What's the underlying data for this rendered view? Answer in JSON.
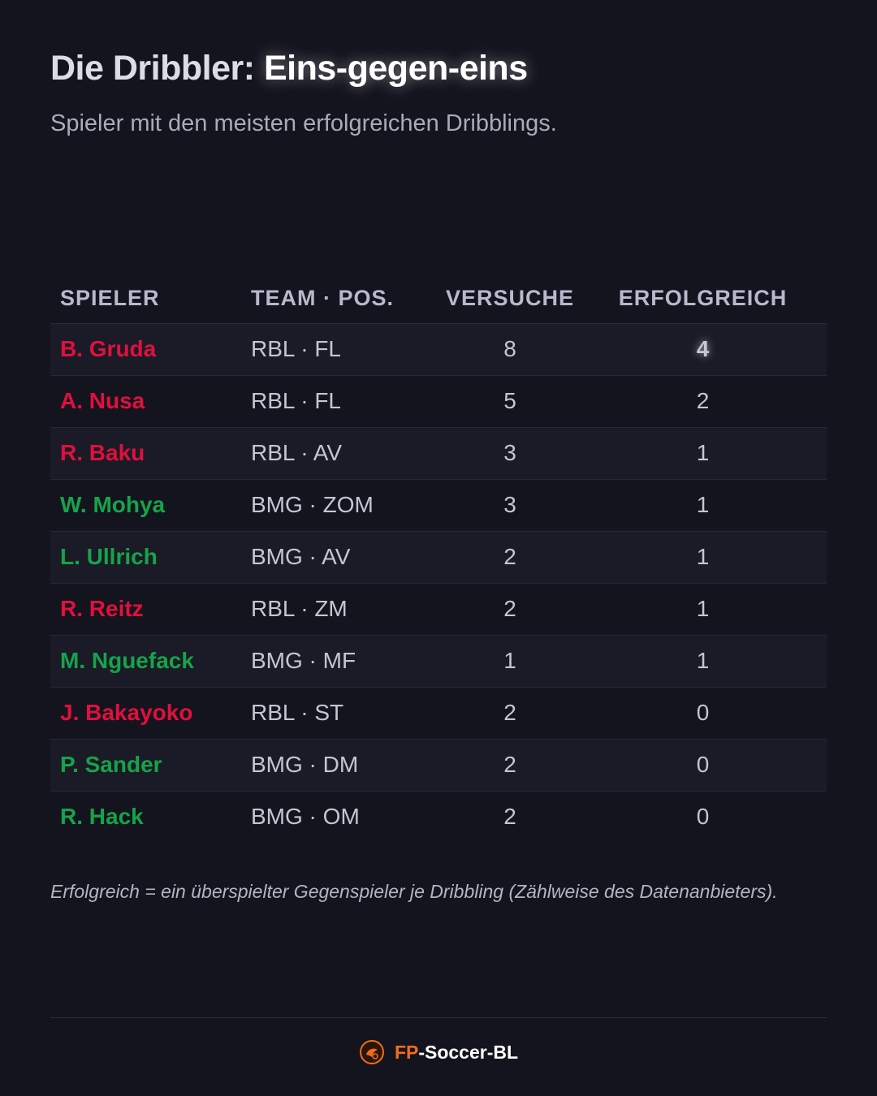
{
  "header": {
    "title_lead": "Die Dribbler: ",
    "title_accent": "Eins-gegen-eins",
    "subtitle": "Spieler mit den meisten erfolgreichen Dribblings."
  },
  "table": {
    "columns": {
      "player": "SPIELER",
      "team_pos": "TEAM · POS.",
      "attempts": "VERSUCHE",
      "successful": "ERFOLGREICH"
    },
    "rows": [
      {
        "player": "B. Gruda",
        "team_pos": "RBL · FL",
        "attempts": "8",
        "successful": "4",
        "team": "RBL",
        "highlight": true
      },
      {
        "player": "A. Nusa",
        "team_pos": "RBL · FL",
        "attempts": "5",
        "successful": "2",
        "team": "RBL"
      },
      {
        "player": "R. Baku",
        "team_pos": "RBL · AV",
        "attempts": "3",
        "successful": "1",
        "team": "RBL"
      },
      {
        "player": "W. Mohya",
        "team_pos": "BMG · ZOM",
        "attempts": "3",
        "successful": "1",
        "team": "BMG"
      },
      {
        "player": "L. Ullrich",
        "team_pos": "BMG · AV",
        "attempts": "2",
        "successful": "1",
        "team": "BMG"
      },
      {
        "player": "R. Reitz",
        "team_pos": "RBL · ZM",
        "attempts": "2",
        "successful": "1",
        "team": "RBL"
      },
      {
        "player": "M. Nguefack",
        "team_pos": "BMG · MF",
        "attempts": "1",
        "successful": "1",
        "team": "BMG"
      },
      {
        "player": "J. Bakayoko",
        "team_pos": "RBL · ST",
        "attempts": "2",
        "successful": "0",
        "team": "RBL"
      },
      {
        "player": "P. Sander",
        "team_pos": "BMG · DM",
        "attempts": "2",
        "successful": "0",
        "team": "BMG"
      },
      {
        "player": "R. Hack",
        "team_pos": "BMG · OM",
        "attempts": "2",
        "successful": "0",
        "team": "BMG"
      }
    ]
  },
  "footnote": "Erfolgreich = ein überspielter Gegenspieler je Dribbling (Zählweise des Datenanbieters).",
  "footer": {
    "brand_prefix": "FP",
    "brand_suffix": "-Soccer-BL",
    "logo_icon": "fp-soccer-bl-logo-icon"
  },
  "colors": {
    "background": "#14141e",
    "rbl": "#e0103d",
    "bmg": "#16a34a",
    "brand_accent": "#f26b1d"
  }
}
